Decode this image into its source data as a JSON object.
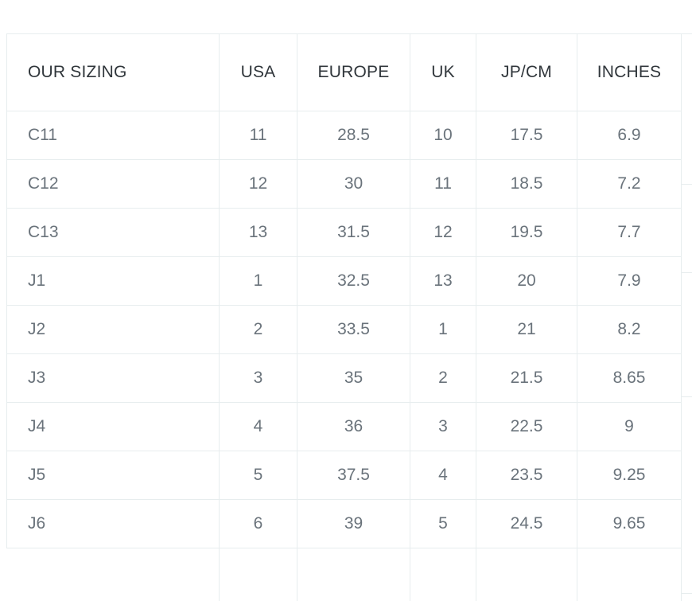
{
  "chart_data": {
    "type": "table",
    "title": "",
    "columns": [
      "OUR SIZING",
      "USA",
      "EUROPE",
      "UK",
      "JP/CM",
      "INCHES"
    ],
    "rows": [
      [
        "C11",
        "11",
        "28.5",
        "10",
        "17.5",
        "6.9"
      ],
      [
        "C12",
        "12",
        "30",
        "11",
        "18.5",
        "7.2"
      ],
      [
        "C13",
        "13",
        "31.5",
        "12",
        "19.5",
        "7.7"
      ],
      [
        "J1",
        "1",
        "32.5",
        "13",
        "20",
        "7.9"
      ],
      [
        "J2",
        "2",
        "33.5",
        "1",
        "21",
        "8.2"
      ],
      [
        "J3",
        "3",
        "35",
        "2",
        "21.5",
        "8.65"
      ],
      [
        "J4",
        "4",
        "36",
        "3",
        "22.5",
        "9"
      ],
      [
        "J5",
        "5",
        "37.5",
        "4",
        "23.5",
        "9.25"
      ],
      [
        "J6",
        "6",
        "39",
        "5",
        "24.5",
        "9.65"
      ]
    ],
    "layout_hints": {
      "header_row": true,
      "first_column_align": "left",
      "other_columns_align": "center",
      "grid": "full-borders",
      "cropped_extra_column_right": true,
      "cropped_empty_row_bottom": true
    }
  },
  "colors": {
    "header_text": "#30363b",
    "cell_text": "#6a737b",
    "grid_border": "#e7edee",
    "background": "#ffffff"
  }
}
